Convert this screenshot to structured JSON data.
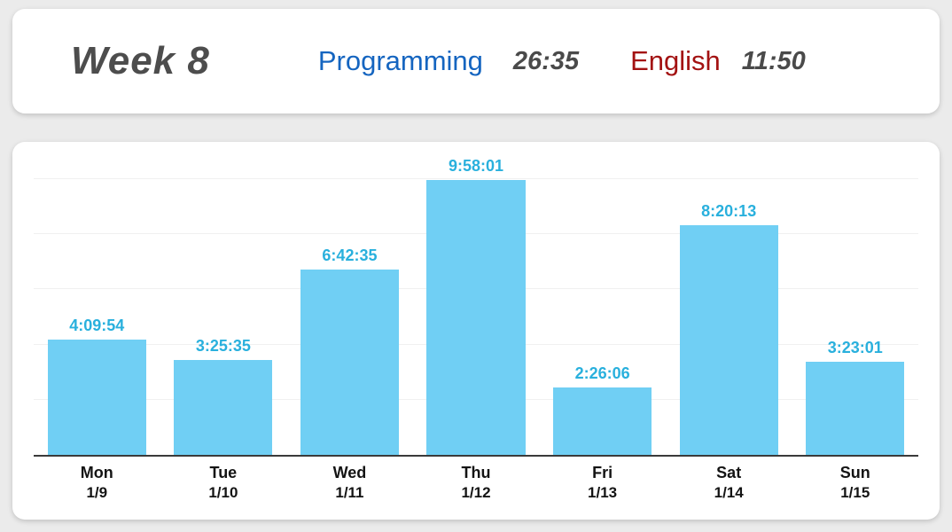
{
  "header": {
    "week_label": "Week 8",
    "categories": [
      {
        "label": "Programming",
        "total": "26:35",
        "color": "#1565c0"
      },
      {
        "label": "English",
        "total": "11:50",
        "color": "#a31212"
      }
    ]
  },
  "chart_data": {
    "type": "bar",
    "title": "",
    "xlabel": "",
    "ylabel": "",
    "ylim": [
      0,
      10.9
    ],
    "grid_interval_hours": 2,
    "legend": "none",
    "bar_color": "#70cff4",
    "value_label_color": "#29b0dd",
    "categories": [
      "Mon 1/9",
      "Tue 1/10",
      "Wed 1/11",
      "Thu 1/12",
      "Fri 1/13",
      "Sat 1/14",
      "Sun 1/15"
    ],
    "bars": [
      {
        "day": "Mon",
        "date": "1/9",
        "time": "4:09:54",
        "hours": 4.165
      },
      {
        "day": "Tue",
        "date": "1/10",
        "time": "3:25:35",
        "hours": 3.426
      },
      {
        "day": "Wed",
        "date": "1/11",
        "time": "6:42:35",
        "hours": 6.71
      },
      {
        "day": "Thu",
        "date": "1/12",
        "time": "9:58:01",
        "hours": 9.967
      },
      {
        "day": "Fri",
        "date": "1/13",
        "time": "2:26:06",
        "hours": 2.435
      },
      {
        "day": "Sat",
        "date": "1/14",
        "time": "8:20:13",
        "hours": 8.337
      },
      {
        "day": "Sun",
        "date": "1/15",
        "time": "3:23:01",
        "hours": 3.384
      }
    ]
  }
}
